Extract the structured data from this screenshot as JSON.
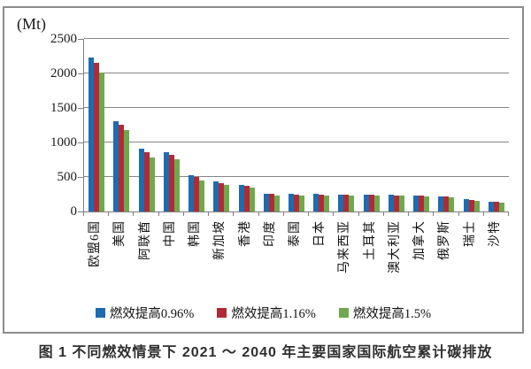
{
  "figure": {
    "unit_label": "(Mt)",
    "caption": "图 1  不同燃效情景下 2021 ～ 2040 年主要国家国际航空累计碳排放"
  },
  "colors": {
    "series_blue": "#1F6BB0",
    "series_red": "#B02B35",
    "series_green": "#70A84E",
    "gridline": "#868686",
    "frame_border": "#8c8c8c"
  },
  "chart_data": {
    "type": "bar",
    "title": "",
    "unit": "Mt",
    "xlabel": "",
    "ylabel": "(Mt)",
    "ylim": [
      0,
      2500
    ],
    "yticks": [
      0,
      500,
      1000,
      1500,
      2000,
      2500
    ],
    "grid": true,
    "legend_position": "bottom",
    "categories": [
      "欧盟6国",
      "美国",
      "阿联酋",
      "中国",
      "韩国",
      "新加坡",
      "香港",
      "印度",
      "泰国",
      "日本",
      "马来西亚",
      "土耳其",
      "澳大利亚",
      "加拿大",
      "俄罗斯",
      "瑞士",
      "沙特"
    ],
    "series": [
      {
        "name": "燃效提高0.96%",
        "color": "#1F6BB0",
        "values": [
          2230,
          1310,
          910,
          865,
          520,
          430,
          390,
          260,
          255,
          250,
          245,
          240,
          240,
          230,
          215,
          175,
          140
        ]
      },
      {
        "name": "燃效提高1.16%",
        "color": "#B02B35",
        "values": [
          2150,
          1260,
          860,
          820,
          500,
          415,
          370,
          250,
          245,
          245,
          240,
          240,
          235,
          225,
          220,
          165,
          135
        ]
      },
      {
        "name": "燃效提高1.5%",
        "color": "#70A84E",
        "values": [
          2010,
          1180,
          780,
          755,
          455,
          380,
          345,
          235,
          235,
          235,
          230,
          230,
          225,
          215,
          205,
          155,
          130
        ]
      }
    ]
  }
}
